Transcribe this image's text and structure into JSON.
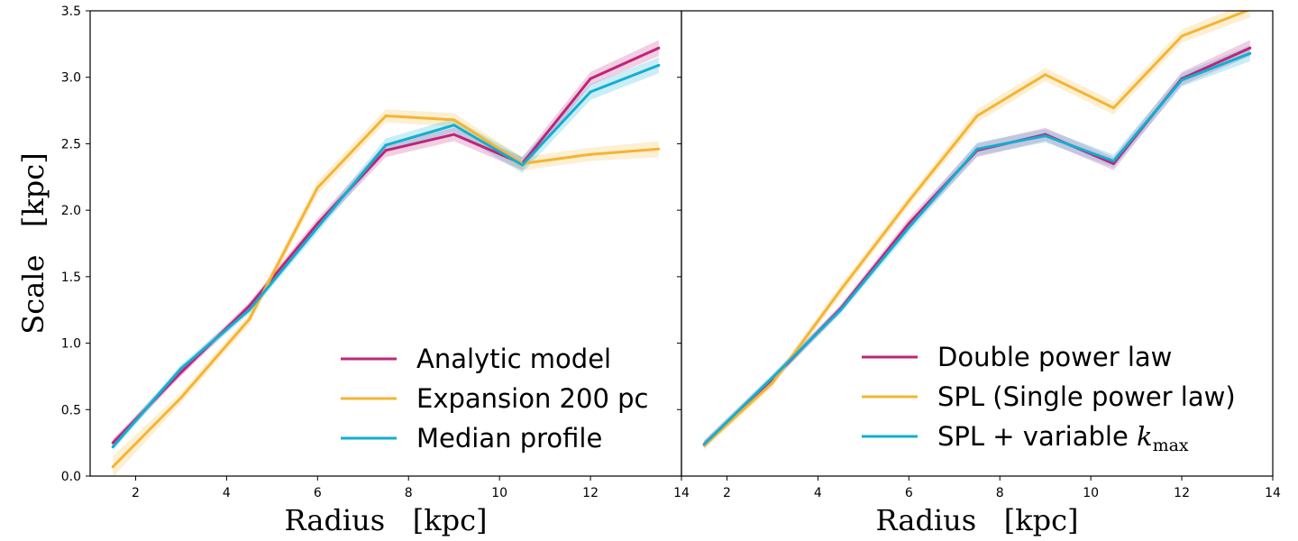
{
  "chart_data": [
    {
      "type": "line",
      "panel": "left",
      "xlabel": "Radius   [kpc]",
      "ylabel": "Scale   [kpc]",
      "xlim": [
        1.0,
        14.0
      ],
      "ylim": [
        0.0,
        3.5
      ],
      "xticks": [
        2,
        4,
        6,
        8,
        10,
        12,
        14
      ],
      "xtick_labels": [
        "2",
        "4",
        "6",
        "8",
        "10",
        "12",
        "14"
      ],
      "yticks": [
        0.0,
        0.5,
        1.0,
        1.5,
        2.0,
        2.5,
        3.0,
        3.5
      ],
      "ytick_labels": [
        "0.0",
        "0.5",
        "1.0",
        "1.5",
        "2.0",
        "2.5",
        "3.0",
        "3.5"
      ],
      "legend_position": "lower-right",
      "x": [
        1.5,
        3.0,
        4.5,
        6.0,
        7.5,
        9.0,
        10.5,
        12.0,
        13.5
      ],
      "series": [
        {
          "name": "Analytic model",
          "color": "#c0247a",
          "values": [
            0.25,
            0.78,
            1.28,
            1.9,
            2.45,
            2.57,
            2.35,
            2.99,
            3.22
          ],
          "err": [
            0.03,
            0.03,
            0.03,
            0.04,
            0.05,
            0.05,
            0.05,
            0.05,
            0.06
          ]
        },
        {
          "name": "Expansion 200 pc",
          "color": "#f5b433",
          "values": [
            0.07,
            0.59,
            1.18,
            2.17,
            2.71,
            2.68,
            2.35,
            2.42,
            2.46
          ],
          "err": [
            0.08,
            0.04,
            0.04,
            0.05,
            0.05,
            0.05,
            0.05,
            0.05,
            0.06
          ]
        },
        {
          "name": "Median profile",
          "color": "#12aed0",
          "values": [
            0.22,
            0.81,
            1.25,
            1.87,
            2.49,
            2.64,
            2.34,
            2.89,
            3.09
          ],
          "err": [
            0.03,
            0.03,
            0.03,
            0.04,
            0.05,
            0.05,
            0.06,
            0.06,
            0.06
          ]
        }
      ]
    },
    {
      "type": "line",
      "panel": "right",
      "xlabel": "Radius   [kpc]",
      "ylabel": "",
      "xlim": [
        1.0,
        14.0
      ],
      "ylim": [
        0.0,
        3.5
      ],
      "xticks": [
        2,
        4,
        6,
        8,
        10,
        12,
        14
      ],
      "xtick_labels": [
        "2",
        "4",
        "6",
        "8",
        "10",
        "12",
        "14"
      ],
      "legend_position": "lower-right",
      "x": [
        1.5,
        3.0,
        4.5,
        6.0,
        7.5,
        9.0,
        10.5,
        12.0,
        13.5
      ],
      "series": [
        {
          "name": "Double power law",
          "color": "#c0247a",
          "values": [
            0.24,
            0.73,
            1.26,
            1.9,
            2.45,
            2.57,
            2.35,
            2.99,
            3.22
          ],
          "err": [
            0.03,
            0.03,
            0.03,
            0.04,
            0.05,
            0.05,
            0.05,
            0.05,
            0.06
          ]
        },
        {
          "name": "SPL (Single power law)",
          "color": "#f5b433",
          "values": [
            0.23,
            0.7,
            1.4,
            2.07,
            2.71,
            3.02,
            2.77,
            3.31,
            3.51
          ],
          "err": [
            0.03,
            0.03,
            0.04,
            0.04,
            0.05,
            0.05,
            0.05,
            0.05,
            0.06
          ]
        },
        {
          "name": "SPL + variable ",
          "name_math": "k",
          "name_sub": "max",
          "color": "#12aed0",
          "values": [
            0.24,
            0.74,
            1.25,
            1.87,
            2.46,
            2.56,
            2.37,
            2.98,
            3.18
          ],
          "err": [
            0.03,
            0.03,
            0.03,
            0.04,
            0.05,
            0.05,
            0.05,
            0.05,
            0.06
          ]
        }
      ]
    }
  ]
}
